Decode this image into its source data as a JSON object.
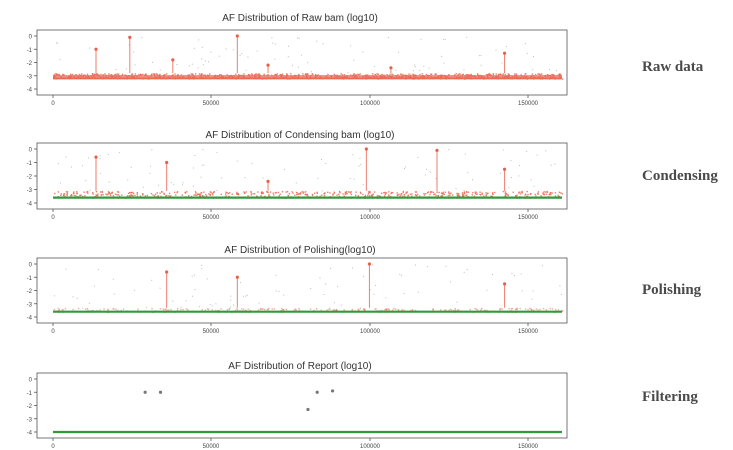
{
  "chart_data": [
    {
      "type": "scatter",
      "title": "AF Distribution of Raw bam (log10)",
      "stage": "Raw data",
      "xlabel": "",
      "ylabel": "",
      "xlim": [
        0,
        16569
      ],
      "ylim": [
        -4,
        0
      ],
      "x_ticks": [
        "0",
        "50000",
        "100000",
        "150000"
      ],
      "y_ticks": [
        "0",
        "-1",
        "-2",
        "-3",
        "-4"
      ],
      "baseline": -3.2,
      "band_top": -2.8,
      "points": [
        [
          1400,
          -1.0
        ],
        [
          3900,
          -1.8
        ],
        [
          7000,
          -2.2
        ],
        [
          11000,
          -2.4
        ],
        [
          14700,
          -1.3
        ],
        [
          6000,
          0.0
        ],
        [
          2500,
          -0.1
        ]
      ]
    },
    {
      "type": "scatter",
      "title": "AF Distribution of Condensing bam (log10)",
      "stage": "Condensing",
      "xlabel": "",
      "ylabel": "",
      "xlim": [
        0,
        16569
      ],
      "ylim": [
        -4,
        0
      ],
      "x_ticks": [
        "0",
        "50000",
        "100000",
        "150000"
      ],
      "y_ticks": [
        "0",
        "-1",
        "-2",
        "-3",
        "-4"
      ],
      "baseline": -3.6,
      "band_top": -3.1,
      "points": [
        [
          1400,
          -0.6
        ],
        [
          3700,
          -1.0
        ],
        [
          7000,
          -2.4
        ],
        [
          14700,
          -1.5
        ],
        [
          10200,
          0.0
        ],
        [
          12500,
          -0.1
        ]
      ]
    },
    {
      "type": "scatter",
      "title": "AF Distribution of Polishing(log10)",
      "stage": "Polishing",
      "xlabel": "",
      "ylabel": "",
      "xlim": [
        0,
        16569
      ],
      "ylim": [
        -4,
        0
      ],
      "x_ticks": [
        "0",
        "50000",
        "100000",
        "150000"
      ],
      "y_ticks": [
        "0",
        "-1",
        "-2",
        "-3",
        "-4"
      ],
      "baseline": -3.6,
      "band_top": -3.3,
      "points": [
        [
          3700,
          -0.6
        ],
        [
          6000,
          -1.0
        ],
        [
          14700,
          -1.5
        ],
        [
          10300,
          0.0
        ]
      ]
    },
    {
      "type": "scatter",
      "title": "AF Distribution of Report (log10)",
      "stage": "Filtering",
      "xlabel": "",
      "ylabel": "",
      "xlim": [
        0,
        16569
      ],
      "ylim": [
        -4,
        0
      ],
      "x_ticks": [
        "0",
        "50000",
        "100000",
        "150000"
      ],
      "y_ticks": [
        "0",
        "-1",
        "-2",
        "-3",
        "-4"
      ],
      "baseline": -4.0,
      "band_top": null,
      "points": [
        [
          3000,
          -1.0
        ],
        [
          3500,
          -1.0
        ],
        [
          8600,
          -1.0
        ],
        [
          8300,
          -2.3
        ],
        [
          9100,
          -0.9
        ]
      ]
    }
  ],
  "colors": {
    "points": "#e8604a",
    "band": "#ea6a55",
    "baseline": "#2e9a3a",
    "axis": "#555555",
    "noise": "#bdbdbd"
  }
}
